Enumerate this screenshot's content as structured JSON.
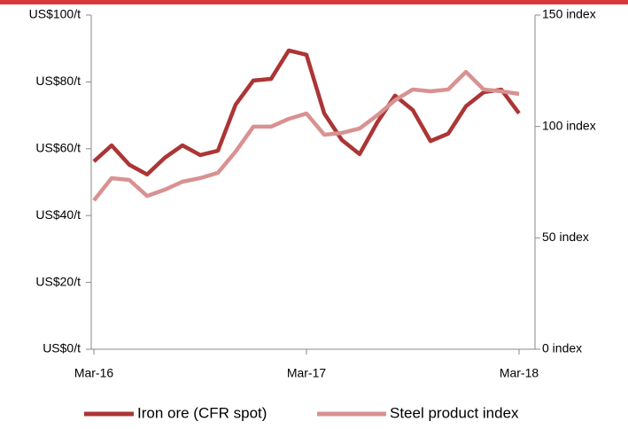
{
  "chart_data": {
    "type": "line",
    "categories": [
      "Mar-16",
      null,
      null,
      null,
      null,
      null,
      null,
      null,
      null,
      null,
      null,
      null,
      "Mar-17",
      null,
      null,
      null,
      null,
      null,
      null,
      null,
      null,
      null,
      null,
      null,
      "Mar-18"
    ],
    "ylim": [
      0,
      100
    ],
    "yticks": [
      {
        "value": 0,
        "label": "US$0/t"
      },
      {
        "value": 20,
        "label": "US$20/t"
      },
      {
        "value": 40,
        "label": "US$40/t"
      },
      {
        "value": 60,
        "label": "US$60/t"
      },
      {
        "value": 80,
        "label": "US$80/t"
      },
      {
        "value": 100,
        "label": "US$100/t"
      }
    ],
    "y2lim": [
      0,
      150
    ],
    "y2ticks": [
      {
        "value": 0,
        "label": "0 index"
      },
      {
        "value": 50,
        "label": "50 index"
      },
      {
        "value": 100,
        "label": "100 index"
      },
      {
        "value": 150,
        "label": "150 index"
      }
    ],
    "legend": "bottom",
    "series": [
      {
        "name": "Iron ore (CFR spot)",
        "color": "#ac3535",
        "values": [
          56.2,
          61.0,
          55.2,
          52.3,
          57.3,
          61.0,
          58.1,
          59.4,
          73.2,
          80.4,
          80.9,
          89.4,
          88.1,
          70.6,
          62.6,
          58.4,
          67.9,
          75.9,
          71.6,
          62.3,
          64.5,
          72.7,
          76.9,
          77.7,
          70.6
        ]
      },
      {
        "name": "Steel product index",
        "color": "#d99191",
        "axis": "y2",
        "values": [
          66.8,
          76.8,
          76.0,
          68.8,
          71.6,
          75.2,
          76.8,
          79.2,
          88.7,
          99.9,
          99.9,
          103.4,
          105.8,
          96.3,
          97.1,
          99.1,
          105.0,
          111.8,
          116.6,
          115.8,
          116.6,
          124.5,
          116.6,
          115.8,
          114.6
        ]
      }
    ]
  }
}
